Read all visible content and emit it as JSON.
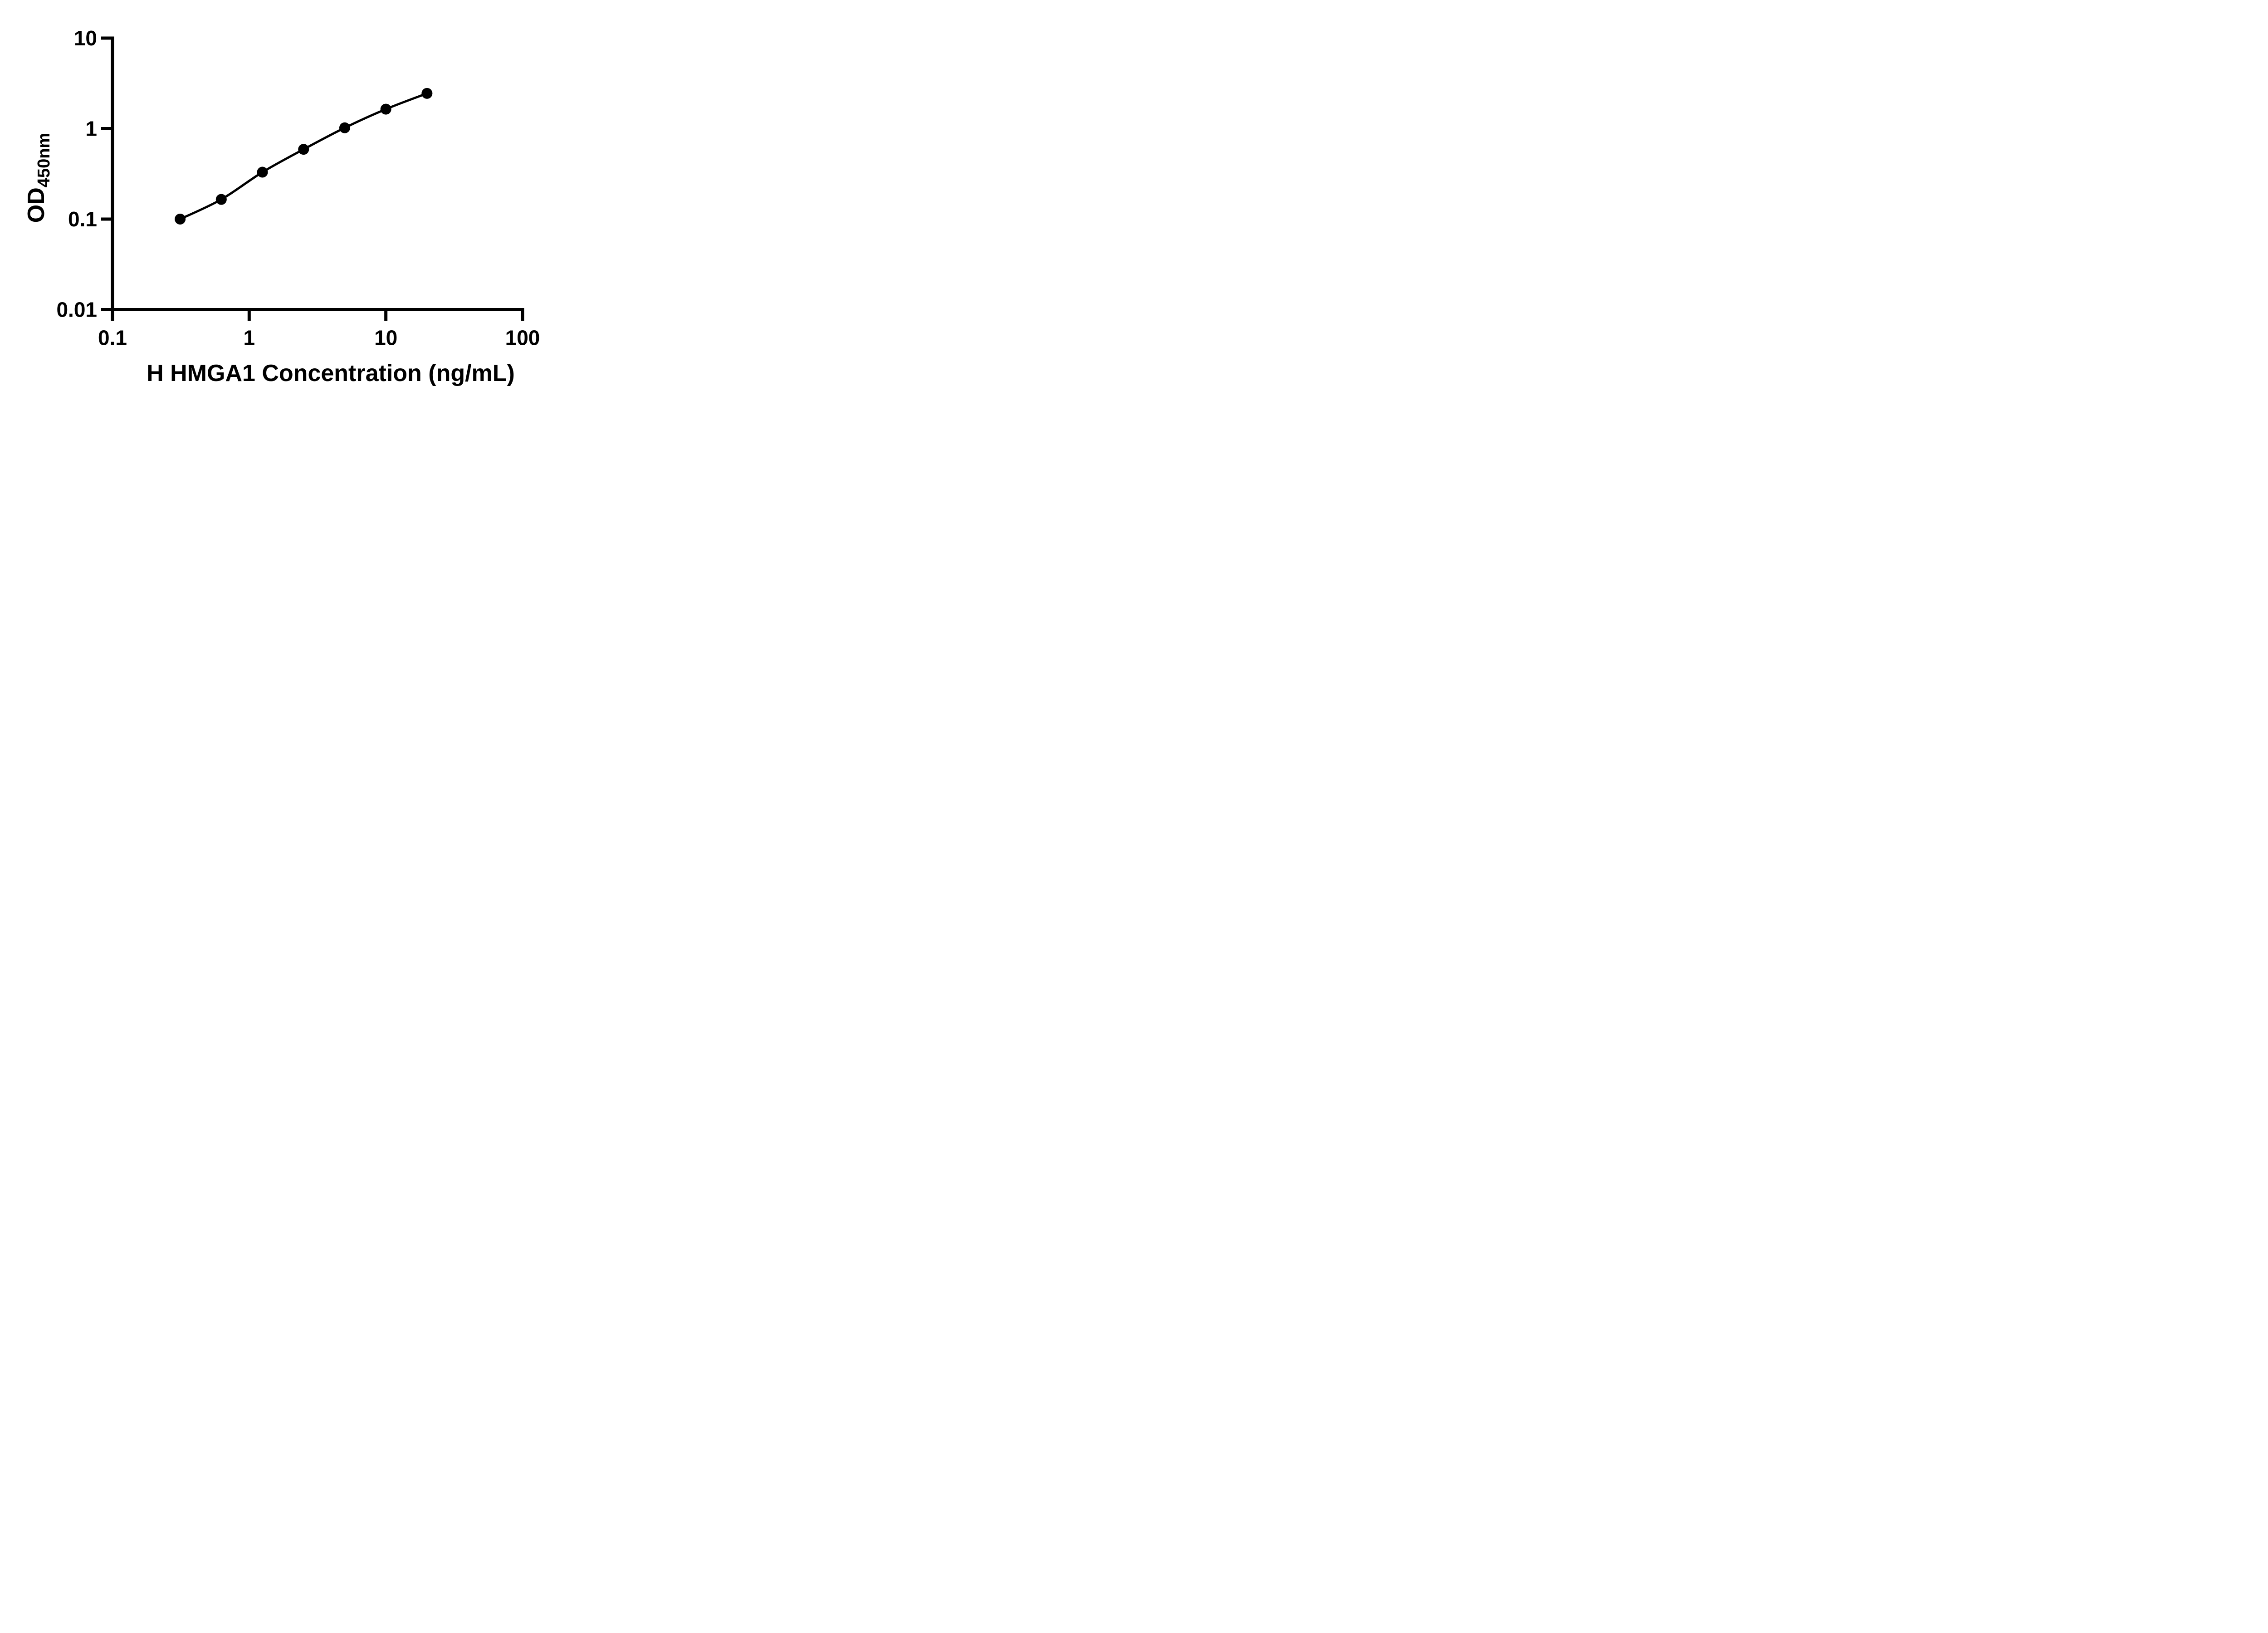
{
  "colors": {
    "ink": "#000000",
    "background": "#ffffff"
  },
  "chart_data": {
    "type": "line",
    "subtype": "log-log standard curve with filled circle markers",
    "title": "",
    "xlabel": "H HMGA1 Concentration (ng/mL)",
    "ylabel": {
      "main": "OD",
      "subscript": "450nm"
    },
    "xscale": "log",
    "yscale": "log",
    "xlim": [
      0.1,
      100
    ],
    "ylim": [
      0.01,
      10
    ],
    "grid": false,
    "legend": false,
    "marker": "filled-circle",
    "curve": "smooth",
    "xticks": [
      {
        "value": 0.1,
        "label": "0.1"
      },
      {
        "value": 1,
        "label": "1"
      },
      {
        "value": 10,
        "label": "10"
      },
      {
        "value": 100,
        "label": "100"
      }
    ],
    "yticks": [
      {
        "value": 10,
        "label": "10"
      },
      {
        "value": 1,
        "label": "1"
      },
      {
        "value": 0.1,
        "label": "0.1"
      },
      {
        "value": 0.01,
        "label": "0.01"
      }
    ],
    "series": [
      {
        "points": [
          {
            "x": 0.3125,
            "y": 0.1
          },
          {
            "x": 0.625,
            "y": 0.165
          },
          {
            "x": 1.25,
            "y": 0.33
          },
          {
            "x": 2.5,
            "y": 0.59
          },
          {
            "x": 5,
            "y": 1.02
          },
          {
            "x": 10,
            "y": 1.64
          },
          {
            "x": 20,
            "y": 2.45
          }
        ]
      }
    ]
  }
}
